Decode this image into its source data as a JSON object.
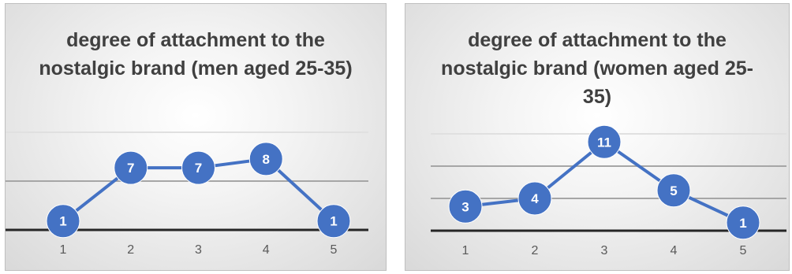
{
  "chart_data": [
    {
      "type": "line",
      "title": "degree of attachment to the nostalgic brand (men aged 25-35)",
      "categories": [
        "1",
        "2",
        "3",
        "4",
        "5"
      ],
      "values": [
        1,
        7,
        7,
        8,
        1
      ],
      "ylim": [
        0,
        11
      ],
      "grid": true,
      "colors": {
        "line": "#4472c4",
        "marker": "#4472c4",
        "label": "#ffffff"
      }
    },
    {
      "type": "line",
      "title": "degree of attachment to the nostalgic brand (women aged 25-35)",
      "categories": [
        "1",
        "2",
        "3",
        "4",
        "5"
      ],
      "values": [
        3,
        4,
        11,
        5,
        1
      ],
      "ylim": [
        0,
        12
      ],
      "grid": true,
      "colors": {
        "line": "#4472c4",
        "marker": "#4472c4",
        "label": "#ffffff"
      }
    }
  ]
}
